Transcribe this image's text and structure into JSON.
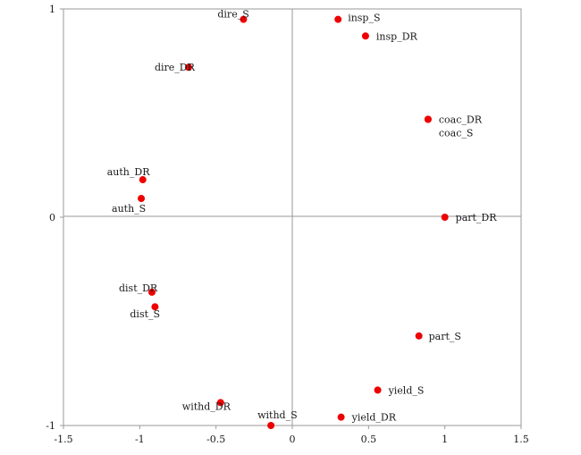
{
  "chart_data": {
    "type": "scatter",
    "title": "",
    "xlabel": "",
    "ylabel": "",
    "xlim": [
      -1.5,
      1.5
    ],
    "ylim": [
      -1,
      1
    ],
    "x_ticks": [
      "-1.5",
      "-1",
      "-0.5",
      "0",
      "0.5",
      "1",
      "1.5"
    ],
    "y_ticks": [
      "1",
      "0",
      "-1"
    ],
    "grid": false,
    "point_color": "#ee0000",
    "points": [
      {
        "label": "dire_S",
        "x": -0.32,
        "y": 0.95
      },
      {
        "label": "insp_S",
        "x": 0.3,
        "y": 0.95
      },
      {
        "label": "insp_DR",
        "x": 0.48,
        "y": 0.87
      },
      {
        "label": "dire_DR",
        "x": -0.68,
        "y": 0.72
      },
      {
        "label": "coac_DR",
        "x": 0.89,
        "y": 0.47
      },
      {
        "label": "coac_S",
        "x": 0.89,
        "y": 0.47
      },
      {
        "label": "auth_DR",
        "x": -0.98,
        "y": 0.18
      },
      {
        "label": "auth_S",
        "x": -0.99,
        "y": 0.09
      },
      {
        "label": "part_DR",
        "x": 1.0,
        "y": 0.0
      },
      {
        "label": "dist_DR",
        "x": -0.92,
        "y": -0.36
      },
      {
        "label": "dist_S",
        "x": -0.9,
        "y": -0.43
      },
      {
        "label": "part_S",
        "x": 0.83,
        "y": -0.57
      },
      {
        "label": "yield_S",
        "x": 0.56,
        "y": -0.83
      },
      {
        "label": "withd_DR",
        "x": -0.47,
        "y": -0.89
      },
      {
        "label": "yield_DR",
        "x": 0.32,
        "y": -0.96
      },
      {
        "label": "withd_S",
        "x": -0.14,
        "y": -1.0
      }
    ]
  }
}
